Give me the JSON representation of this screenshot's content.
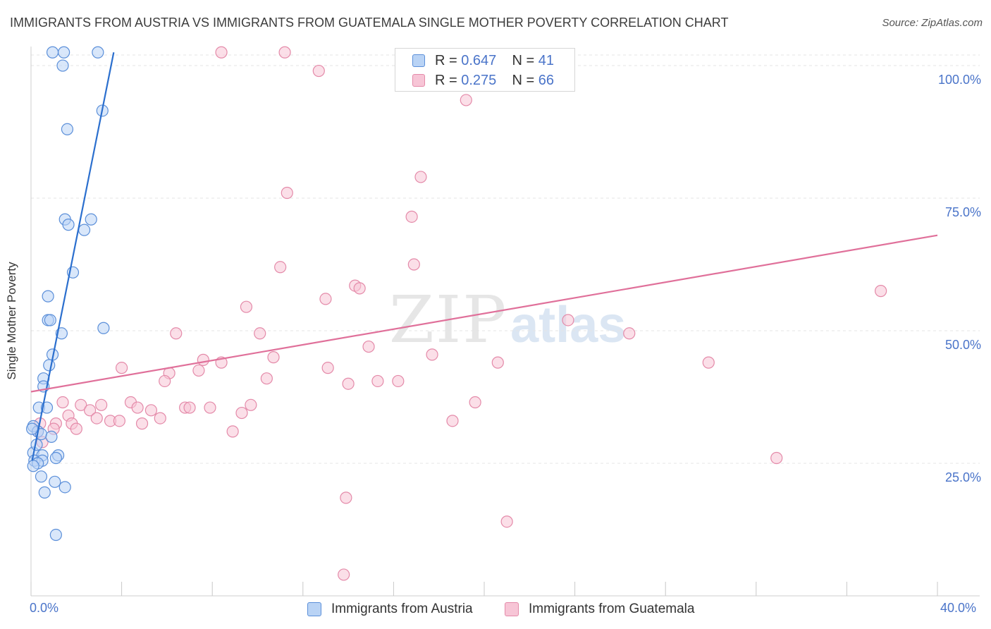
{
  "title": "IMMIGRANTS FROM AUSTRIA VS IMMIGRANTS FROM GUATEMALA SINGLE MOTHER POVERTY CORRELATION CHART",
  "source": "Source: ZipAtlas.com",
  "watermark": {
    "zip": "ZIP",
    "atlas": "atlas"
  },
  "legend_top": {
    "austria": {
      "r_label": "R = ",
      "r_value": "0.647",
      "n_label": "N = ",
      "n_value": "41"
    },
    "guatemala": {
      "r_label": "R = ",
      "r_value": "0.275",
      "n_label": "N = ",
      "n_value": "66"
    }
  },
  "colors": {
    "austria_fill": "#b9d3f5",
    "austria_stroke": "#5b8fd9",
    "austria_line": "#2b6fce",
    "guatemala_fill": "#f7c5d6",
    "guatemala_stroke": "#e48aa9",
    "guatemala_line": "#e0709a",
    "grid": "#e4e4e4",
    "tick_text": "#4a74c9"
  },
  "chart_data": {
    "type": "scatter",
    "title": "IMMIGRANTS FROM AUSTRIA VS IMMIGRANTS FROM GUATEMALA SINGLE MOTHER POVERTY CORRELATION CHART",
    "xlabel": "",
    "ylabel": "Single Mother Poverty",
    "xlim": [
      0,
      40
    ],
    "ylim": [
      0,
      102
    ],
    "x_tick_labels": [
      {
        "value": 0,
        "label": "0.0%"
      },
      {
        "value": 40,
        "label": "40.0%"
      }
    ],
    "y_tick_labels": [
      {
        "value": 25,
        "label": "25.0%"
      },
      {
        "value": 50,
        "label": "50.0%"
      },
      {
        "value": 75,
        "label": "75.0%"
      },
      {
        "value": 100,
        "label": "100.0%"
      }
    ],
    "x_minor_ticks": [
      0,
      4,
      8,
      12,
      16,
      20,
      24,
      28,
      32,
      36,
      40
    ],
    "grid": true,
    "legend_position": "bottom",
    "series": [
      {
        "name": "Immigrants from Austria",
        "R": 0.647,
        "N": 41,
        "trend": {
          "x": [
            0.05,
            3.65
          ],
          "y": [
            25.5,
            102.5
          ]
        },
        "points": [
          {
            "x": 0.95,
            "y": 102.5
          },
          {
            "x": 1.45,
            "y": 102.5
          },
          {
            "x": 2.95,
            "y": 102.5
          },
          {
            "x": 1.4,
            "y": 100.0
          },
          {
            "x": 3.15,
            "y": 91.5
          },
          {
            "x": 1.6,
            "y": 88.0
          },
          {
            "x": 1.5,
            "y": 71.0
          },
          {
            "x": 1.65,
            "y": 70.0
          },
          {
            "x": 2.35,
            "y": 69.0
          },
          {
            "x": 2.65,
            "y": 71.0
          },
          {
            "x": 1.85,
            "y": 61.0
          },
          {
            "x": 0.75,
            "y": 56.5
          },
          {
            "x": 0.75,
            "y": 52.0
          },
          {
            "x": 0.85,
            "y": 52.0
          },
          {
            "x": 3.2,
            "y": 50.5
          },
          {
            "x": 1.35,
            "y": 49.5
          },
          {
            "x": 0.95,
            "y": 45.5
          },
          {
            "x": 0.8,
            "y": 43.5
          },
          {
            "x": 0.55,
            "y": 41.0
          },
          {
            "x": 0.55,
            "y": 39.5
          },
          {
            "x": 0.35,
            "y": 35.5
          },
          {
            "x": 0.7,
            "y": 35.5
          },
          {
            "x": 0.1,
            "y": 32.0
          },
          {
            "x": 0.3,
            "y": 31.0
          },
          {
            "x": 0.45,
            "y": 30.5
          },
          {
            "x": 0.9,
            "y": 30.0
          },
          {
            "x": 0.1,
            "y": 27.0
          },
          {
            "x": 0.5,
            "y": 26.5
          },
          {
            "x": 1.2,
            "y": 26.5
          },
          {
            "x": 0.15,
            "y": 25.5
          },
          {
            "x": 0.5,
            "y": 25.5
          },
          {
            "x": 1.1,
            "y": 26.0
          },
          {
            "x": 0.3,
            "y": 25.0
          },
          {
            "x": 0.1,
            "y": 24.5
          },
          {
            "x": 0.45,
            "y": 22.5
          },
          {
            "x": 1.05,
            "y": 21.5
          },
          {
            "x": 1.5,
            "y": 20.5
          },
          {
            "x": 0.6,
            "y": 19.5
          },
          {
            "x": 1.1,
            "y": 11.5
          },
          {
            "x": 0.05,
            "y": 31.5
          },
          {
            "x": 0.25,
            "y": 28.5
          }
        ]
      },
      {
        "name": "Immigrants from Guatemala",
        "R": 0.275,
        "N": 66,
        "trend": {
          "x": [
            0,
            40
          ],
          "y": [
            38.5,
            68.0
          ]
        },
        "points": [
          {
            "x": 8.4,
            "y": 102.5
          },
          {
            "x": 11.2,
            "y": 102.5
          },
          {
            "x": 12.7,
            "y": 99.0
          },
          {
            "x": 19.2,
            "y": 93.5
          },
          {
            "x": 17.2,
            "y": 79.0
          },
          {
            "x": 11.3,
            "y": 76.0
          },
          {
            "x": 16.8,
            "y": 71.5
          },
          {
            "x": 11.0,
            "y": 62.0
          },
          {
            "x": 16.9,
            "y": 62.5
          },
          {
            "x": 14.3,
            "y": 58.5
          },
          {
            "x": 14.5,
            "y": 58.0
          },
          {
            "x": 9.5,
            "y": 54.5
          },
          {
            "x": 13.0,
            "y": 56.0
          },
          {
            "x": 23.7,
            "y": 52.0
          },
          {
            "x": 37.5,
            "y": 57.5
          },
          {
            "x": 10.1,
            "y": 49.5
          },
          {
            "x": 6.4,
            "y": 49.5
          },
          {
            "x": 14.9,
            "y": 47.0
          },
          {
            "x": 26.4,
            "y": 49.5
          },
          {
            "x": 17.7,
            "y": 45.5
          },
          {
            "x": 10.7,
            "y": 45.0
          },
          {
            "x": 7.6,
            "y": 44.5
          },
          {
            "x": 8.4,
            "y": 44.0
          },
          {
            "x": 13.1,
            "y": 43.0
          },
          {
            "x": 20.6,
            "y": 44.0
          },
          {
            "x": 29.9,
            "y": 44.0
          },
          {
            "x": 4.0,
            "y": 43.0
          },
          {
            "x": 7.4,
            "y": 42.5
          },
          {
            "x": 6.1,
            "y": 42.0
          },
          {
            "x": 5.9,
            "y": 40.5
          },
          {
            "x": 10.4,
            "y": 41.0
          },
          {
            "x": 14.0,
            "y": 40.0
          },
          {
            "x": 15.3,
            "y": 40.5
          },
          {
            "x": 16.2,
            "y": 40.5
          },
          {
            "x": 1.4,
            "y": 36.5
          },
          {
            "x": 2.2,
            "y": 36.0
          },
          {
            "x": 3.1,
            "y": 36.0
          },
          {
            "x": 4.4,
            "y": 36.5
          },
          {
            "x": 4.7,
            "y": 35.5
          },
          {
            "x": 6.8,
            "y": 35.5
          },
          {
            "x": 7.0,
            "y": 35.5
          },
          {
            "x": 7.9,
            "y": 35.5
          },
          {
            "x": 9.7,
            "y": 36.0
          },
          {
            "x": 19.6,
            "y": 36.5
          },
          {
            "x": 2.6,
            "y": 35.0
          },
          {
            "x": 5.3,
            "y": 35.0
          },
          {
            "x": 9.3,
            "y": 34.5
          },
          {
            "x": 1.65,
            "y": 34.0
          },
          {
            "x": 2.9,
            "y": 33.5
          },
          {
            "x": 3.5,
            "y": 33.0
          },
          {
            "x": 3.9,
            "y": 33.0
          },
          {
            "x": 5.7,
            "y": 33.5
          },
          {
            "x": 18.6,
            "y": 33.0
          },
          {
            "x": 1.1,
            "y": 32.5
          },
          {
            "x": 1.8,
            "y": 32.5
          },
          {
            "x": 4.9,
            "y": 32.5
          },
          {
            "x": 0.4,
            "y": 32.5
          },
          {
            "x": 1.0,
            "y": 31.5
          },
          {
            "x": 2.0,
            "y": 31.5
          },
          {
            "x": 8.9,
            "y": 31.0
          },
          {
            "x": 0.3,
            "y": 31.0
          },
          {
            "x": 0.5,
            "y": 29.0
          },
          {
            "x": 32.9,
            "y": 26.0
          },
          {
            "x": 13.9,
            "y": 18.5
          },
          {
            "x": 21.0,
            "y": 14.0
          },
          {
            "x": 13.8,
            "y": 4.0
          }
        ]
      }
    ]
  },
  "bottom_legend": {
    "austria_label": "Immigrants from Austria",
    "guatemala_label": "Immigrants from Guatemala"
  }
}
